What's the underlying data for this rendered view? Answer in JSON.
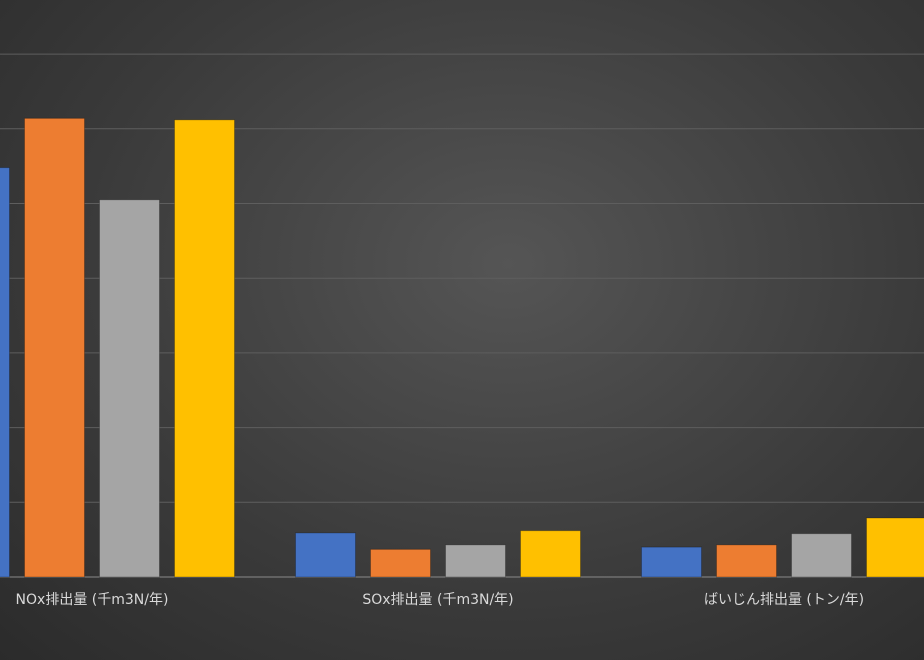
{
  "chart_data": {
    "type": "bar",
    "categories": [
      "NOx排出量 (千m3N/年)",
      "SOx排出量 (千m3N/年)",
      "ばいじん排出量 (トン/年)"
    ],
    "series": [
      {
        "color": "#4472c4",
        "values": [
          5.48,
          0.59,
          0.4
        ]
      },
      {
        "color": "#ed7d31",
        "values": [
          6.14,
          0.37,
          0.43
        ]
      },
      {
        "color": "#a5a5a5",
        "values": [
          5.05,
          0.43,
          0.58
        ]
      },
      {
        "color": "#ffc000",
        "values": [
          6.12,
          0.62,
          0.79
        ]
      }
    ],
    "ylim": [
      0,
      8
    ],
    "yticks": [
      0,
      1,
      2,
      3,
      4,
      5,
      6,
      7
    ],
    "grid": true
  }
}
